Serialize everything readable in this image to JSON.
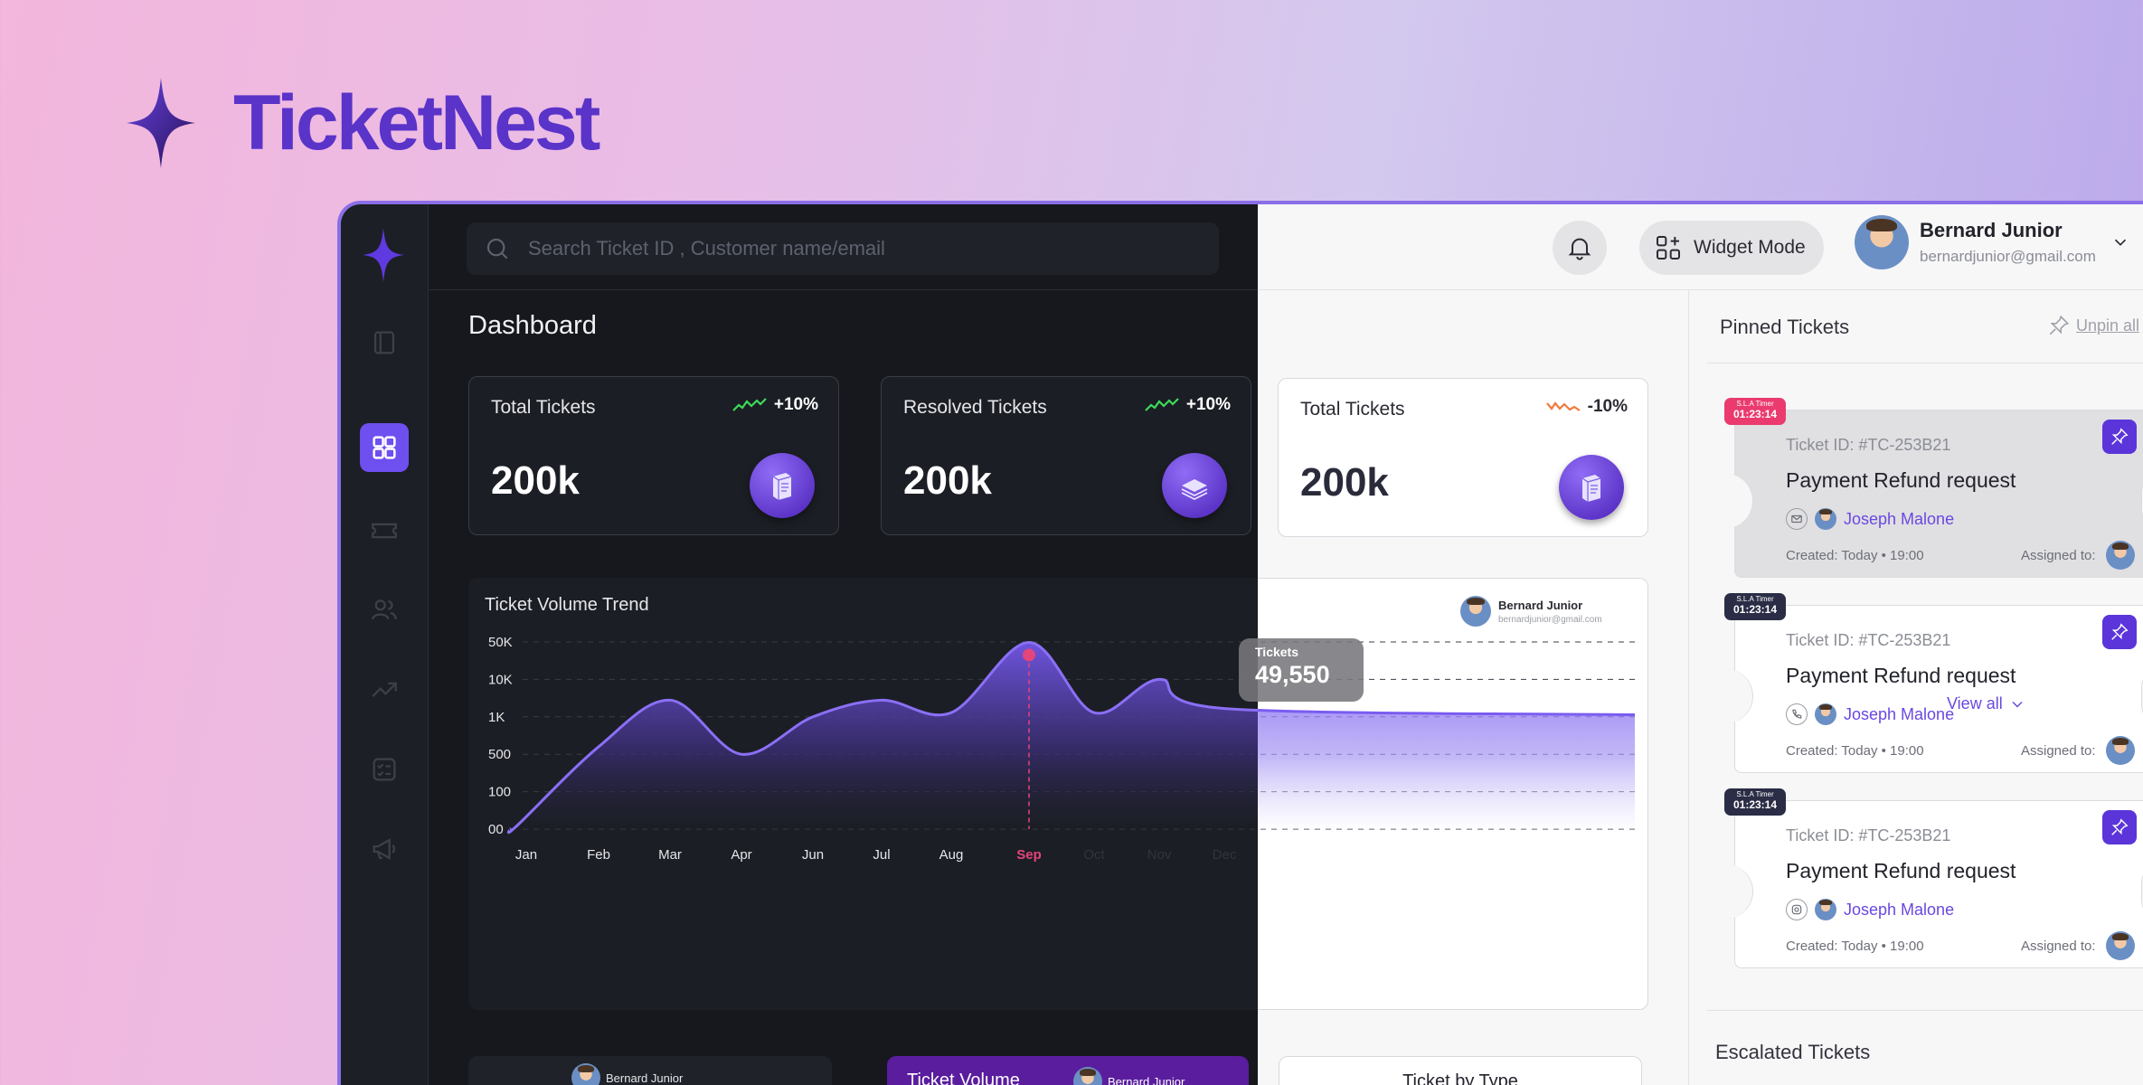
{
  "brand": {
    "name": "TicketNest",
    "color": "#5a33c9"
  },
  "search": {
    "placeholder": "Search Ticket ID , Customer name/email"
  },
  "topbar": {
    "widget_label": "Widget Mode"
  },
  "user": {
    "name": "Bernard Junior",
    "email": "bernardjunior@gmail.com"
  },
  "sidebar": {
    "items": [
      {
        "icon": "panel-icon",
        "active": false
      },
      {
        "icon": "dashboard-grid-icon",
        "active": true
      },
      {
        "icon": "ticket-icon",
        "active": false
      },
      {
        "icon": "users-icon",
        "active": false
      },
      {
        "icon": "trend-up-icon",
        "active": false
      },
      {
        "icon": "checklist-icon",
        "active": false
      },
      {
        "icon": "megaphone-icon",
        "active": false
      }
    ]
  },
  "page": {
    "title": "Dashboard"
  },
  "stats": [
    {
      "label": "Total Tickets",
      "change": "+10%",
      "value": "200k",
      "theme": "dark",
      "trend_color": "#3ddc5a"
    },
    {
      "label": "Resolved Tickets",
      "change": "+10%",
      "value": "200k",
      "theme": "dark",
      "trend_color": "#3ddc5a"
    },
    {
      "label": "Total Tickets",
      "change": "-10%",
      "value": "200k",
      "theme": "light",
      "trend_color": "#f07a3a"
    }
  ],
  "chart": {
    "title": "Ticket Volume Trend",
    "user_name": "Bernard Junior",
    "user_email": "bernardjunior@gmail.com",
    "tooltip_label": "Tickets",
    "tooltip_value": "49,550"
  },
  "chart_data": {
    "type": "area",
    "title": "Ticket Volume Trend",
    "categories": [
      "Jan",
      "Feb",
      "Mar",
      "Apr",
      "Jun",
      "Jul",
      "Aug",
      "Sep",
      "Oct",
      "Nov",
      "Dec"
    ],
    "y_ticks": [
      "00",
      "100",
      "500",
      "1K",
      "10K",
      "50K"
    ],
    "series": [
      {
        "name": "Tickets",
        "values": [
          0,
          600,
          5000,
          500,
          1000,
          5000,
          2000,
          49550,
          2000,
          10000,
          3000
        ]
      }
    ],
    "highlight": {
      "category": "Sep",
      "value": "49,550"
    },
    "accent": "#7a5cf0",
    "highlight_color": "#e4457a",
    "grid": true,
    "scale": "log"
  },
  "pinned": {
    "title": "Pinned Tickets",
    "unpin_label": "Unpin all",
    "tickets": [
      {
        "sla_label": "S.L.A Timer",
        "sla_time": "01:23:14",
        "sla_color": "red",
        "id": "Ticket ID: #TC-253B21",
        "title": "Payment Refund request",
        "channel_icon": "mail-icon",
        "customer": "Joseph Malone",
        "created": "Created: Today • 19:00",
        "assigned": "Assigned to:"
      },
      {
        "sla_label": "S.L.A Timer",
        "sla_time": "01:23:14",
        "sla_color": "navy",
        "id": "Ticket ID: #TC-253B21",
        "title": "Payment Refund request",
        "channel_icon": "phone-icon",
        "customer": "Joseph Malone",
        "created": "Created: Today • 19:00",
        "assigned": "Assigned to:"
      },
      {
        "sla_label": "S.L.A Timer",
        "sla_time": "01:23:14",
        "sla_color": "navy",
        "id": "Ticket ID: #TC-253B21",
        "title": "Payment Refund request",
        "channel_icon": "instagram-icon",
        "customer": "Joseph Malone",
        "created": "Created: Today • 19:00",
        "assigned": "Assigned to:"
      }
    ],
    "view_all": "View all"
  },
  "escalated": {
    "title": "Escalated Tickets"
  },
  "bottom_cards": [
    {
      "user": "Bernard Junior"
    },
    {
      "title": "Ticket Volume",
      "user": "Bernard Junior"
    },
    {
      "title": "Ticket by Type"
    }
  ]
}
